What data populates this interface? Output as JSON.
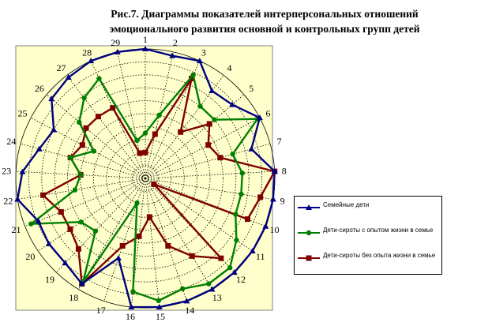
{
  "title": {
    "line1": "Рис.7. Диаграммы показателей интерперсональных отношений",
    "line2": "эмоционального развития основной и контрольных групп детей"
  },
  "chart_data": {
    "type": "radar",
    "categories": [
      "1",
      "2",
      "3",
      "4",
      "5",
      "6",
      "7",
      "8",
      "9",
      "10",
      "11",
      "12",
      "13",
      "14",
      "15",
      "16",
      "17",
      "18",
      "19",
      "20",
      "21",
      "22",
      "23",
      "24",
      "25",
      "26",
      "27",
      "28",
      "29"
    ],
    "rmax": 10,
    "rings": 10,
    "grid": true,
    "legend_position": "right",
    "series": [
      {
        "name": "Семейные дети",
        "color": "#000080",
        "marker": "triangle",
        "values": [
          10,
          9.7,
          10,
          8.5,
          8.8,
          10,
          8.5,
          10,
          10,
          10,
          10,
          10,
          10,
          10,
          10,
          10,
          6.5,
          9.5,
          9,
          9,
          8.9,
          10,
          9.5,
          8.5,
          8,
          9.5,
          9.8,
          10,
          10
        ]
      },
      {
        "name": "Дети-сироты с опытом жизни в семье",
        "color": "#008000",
        "marker": "circle",
        "values": [
          3.5,
          5,
          8.8,
          7,
          7,
          9.8,
          7,
          7.5,
          7.5,
          7.5,
          8.5,
          9.5,
          9.5,
          9,
          9.5,
          8.8,
          2,
          9.3,
          5.6,
          6,
          9.5,
          5.5,
          5,
          6,
          4.5,
          6.7,
          7.8,
          8.5,
          3
        ]
      },
      {
        "name": "Дети-сироты без опыта жизни в семье",
        "color": "#800000",
        "marker": "square",
        "values": [
          2,
          3.5,
          8.5,
          4.5,
          6.5,
          5.5,
          6,
          10,
          9,
          8.5,
          0.8,
          8.5,
          7,
          5.5,
          3,
          4.5,
          5.5,
          9.5,
          7.5,
          7,
          7,
          8,
          5,
          6,
          5.5,
          6,
          6,
          6,
          2
        ]
      }
    ]
  }
}
